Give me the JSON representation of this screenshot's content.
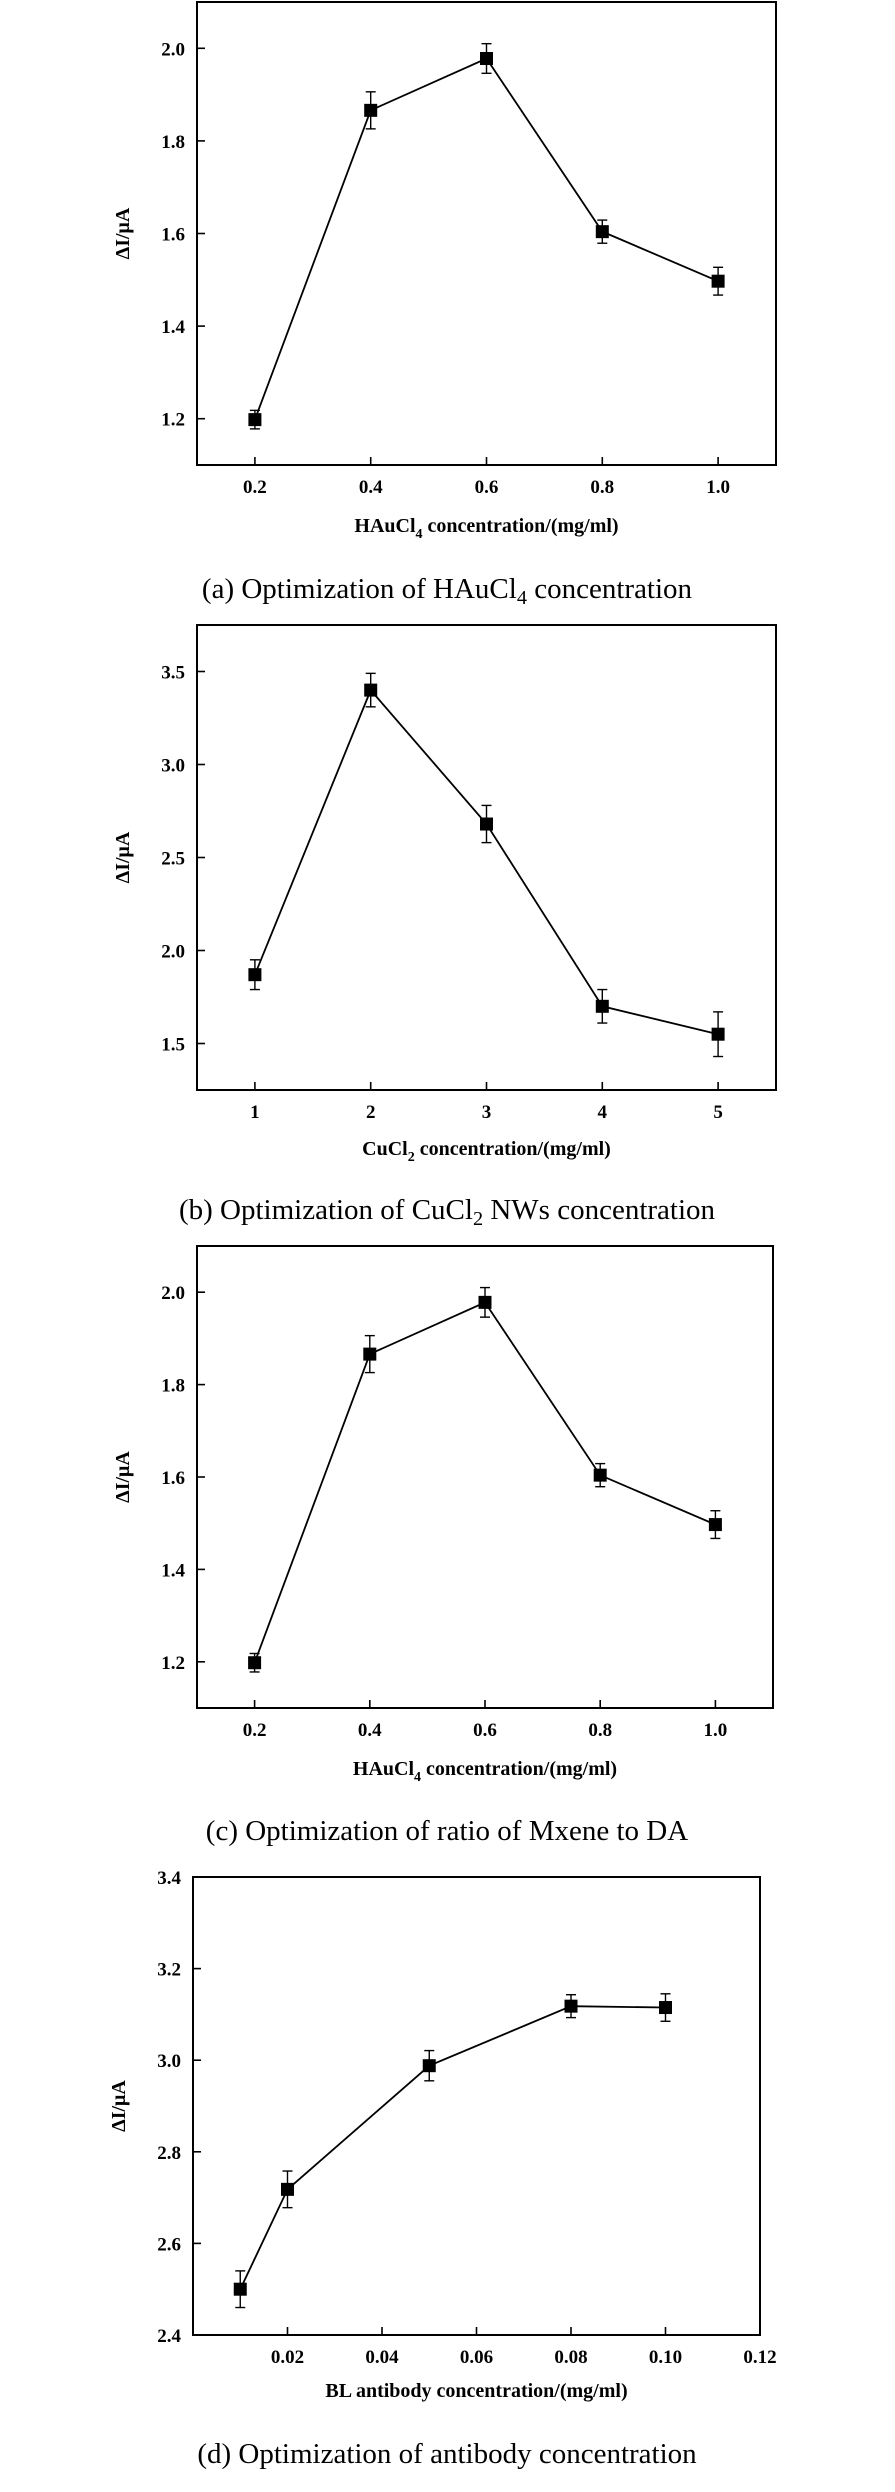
{
  "chart_data": [
    {
      "type": "line",
      "caption": {
        "pre": "(a) Optimization of HAuCl",
        "sub": "4",
        "post": " concentration"
      },
      "xlabel": {
        "pre": "HAuCl",
        "sub": "4",
        "post": " concentration/(mg/ml)"
      },
      "ylabel": "ΔI/μA",
      "xlim": [
        0.1,
        1.1
      ],
      "ylim": [
        1.1,
        2.1
      ],
      "xticks": [
        "0.2",
        "0.4",
        "0.6",
        "0.8",
        "1.0"
      ],
      "yticks": [
        "1.2",
        "1.4",
        "1.6",
        "1.8",
        "2.0"
      ],
      "x": [
        0.2,
        0.4,
        0.6,
        0.8,
        1.0
      ],
      "y": [
        1.198,
        1.866,
        1.978,
        1.604,
        1.497
      ],
      "err": [
        0.02,
        0.04,
        0.032,
        0.025,
        0.03
      ]
    },
    {
      "type": "line",
      "caption": {
        "pre": "(b) Optimization of CuCl",
        "sub": "2",
        "post": " NWs concentration"
      },
      "xlabel": {
        "pre": "CuCl",
        "sub": "2",
        "post": " concentration/(mg/ml)"
      },
      "ylabel": "ΔI/μA",
      "xlim": [
        0.5,
        5.5
      ],
      "ylim": [
        1.25,
        3.75
      ],
      "xticks": [
        "1",
        "2",
        "3",
        "4",
        "5"
      ],
      "yticks": [
        "1.5",
        "2.0",
        "2.5",
        "3.0",
        "3.5"
      ],
      "x": [
        1,
        2,
        3,
        4,
        5
      ],
      "y": [
        1.87,
        3.4,
        2.68,
        1.7,
        1.55
      ],
      "err": [
        0.08,
        0.09,
        0.1,
        0.09,
        0.12
      ]
    },
    {
      "type": "line",
      "caption": {
        "pre": "(c) Optimization of ratio of Mxene to DA",
        "sub": "",
        "post": ""
      },
      "xlabel": {
        "pre": "HAuCl",
        "sub": "4",
        "post": " concentration/(mg/ml)"
      },
      "ylabel": "ΔI/μA",
      "xlim": [
        0.1,
        1.1
      ],
      "ylim": [
        1.1,
        2.1
      ],
      "xticks": [
        "0.2",
        "0.4",
        "0.6",
        "0.8",
        "1.0"
      ],
      "yticks": [
        "1.2",
        "1.4",
        "1.6",
        "1.8",
        "2.0"
      ],
      "x": [
        0.2,
        0.4,
        0.6,
        0.8,
        1.0
      ],
      "y": [
        1.198,
        1.866,
        1.978,
        1.604,
        1.497
      ],
      "err": [
        0.02,
        0.04,
        0.032,
        0.025,
        0.03
      ]
    },
    {
      "type": "line",
      "caption": {
        "pre": "(d) Optimization of antibody concentration",
        "sub": "",
        "post": ""
      },
      "xlabel": {
        "pre": "BL antibody concentration/(mg/ml)",
        "sub": "",
        "post": ""
      },
      "ylabel": "ΔI/μA",
      "xlim": [
        0.0,
        0.12
      ],
      "ylim": [
        2.4,
        3.4
      ],
      "xticks": [
        "0.02",
        "0.04",
        "0.06",
        "0.08",
        "0.10",
        "0.12"
      ],
      "yticks": [
        "2.4",
        "2.6",
        "2.8",
        "3.0",
        "3.2",
        "3.4"
      ],
      "x": [
        0.01,
        0.02,
        0.05,
        0.08,
        0.1
      ],
      "y": [
        2.5,
        2.718,
        2.988,
        3.118,
        3.115
      ],
      "err": [
        0.04,
        0.04,
        0.033,
        0.025,
        0.03
      ]
    }
  ]
}
